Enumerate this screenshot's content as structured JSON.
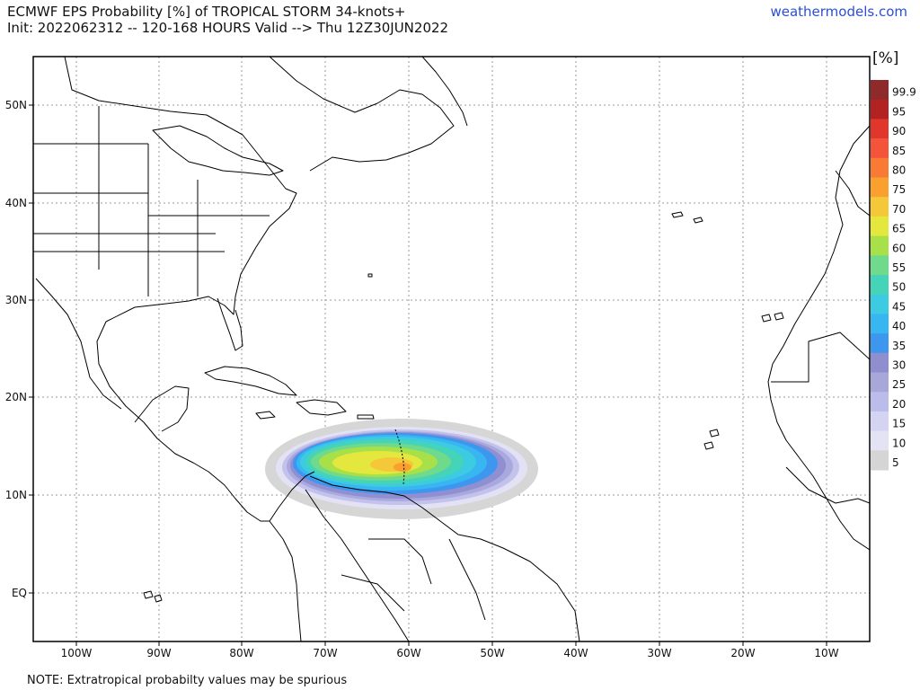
{
  "header": {
    "title_line1": "ECMWF EPS Probability [%] of TROPICAL STORM 34-knots+",
    "title_line2": "Init: 2022062312 -- 120-168 HOURS Valid --> Thu 12Z30JUN2022",
    "brand": "weathermodels.com"
  },
  "footer": {
    "note": "NOTE: Extratropical probabilty values may be spurious"
  },
  "map": {
    "lon_labels": [
      "100W",
      "90W",
      "80W",
      "70W",
      "60W",
      "50W",
      "40W",
      "30W",
      "20W",
      "10W"
    ],
    "lat_labels": [
      "50N",
      "40N",
      "30N",
      "20N",
      "10N",
      "EQ"
    ]
  },
  "colorbar": {
    "unit": "[%]",
    "levels": [
      "99.9",
      "95",
      "90",
      "85",
      "80",
      "75",
      "70",
      "65",
      "60",
      "55",
      "50",
      "45",
      "40",
      "35",
      "30",
      "25",
      "20",
      "15",
      "10",
      "5"
    ],
    "colors": [
      "#8e2a2a",
      "#b22222",
      "#e0362c",
      "#f4553a",
      "#f87a35",
      "#f9a02f",
      "#f5c83a",
      "#e4e83e",
      "#a8e04a",
      "#6fd98c",
      "#45d4b8",
      "#3ccbe0",
      "#38b6f1",
      "#3e97ef",
      "#8f8fd0",
      "#a7a7d9",
      "#bcbcea",
      "#d4d4f2",
      "#e3e3f4",
      "#d5d5d5"
    ]
  },
  "colors": {
    "brand": "#2b4fd6",
    "land_outline": "#000000",
    "grid": "#999999"
  }
}
